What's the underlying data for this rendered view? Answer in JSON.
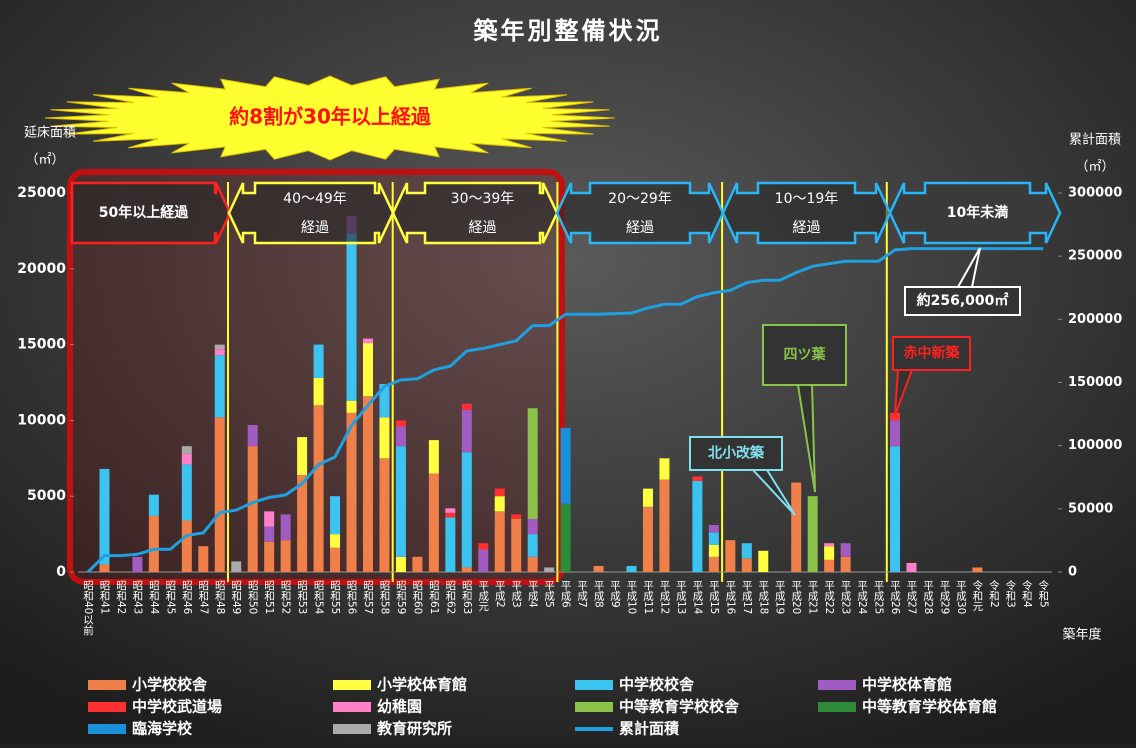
{
  "chart_data": {
    "type": "bar",
    "title": "築年別整備状況",
    "badge": "約8割が30年以上経過",
    "y_label": "延床面積",
    "y_unit": "（㎡）",
    "y2_label": "累計面積",
    "y2_unit": "（㎡）",
    "x_label": "築年度",
    "periods": [
      {
        "label": "50年以上経過",
        "color": "#ff2020"
      },
      {
        "label": "40～49年",
        "sub": "経過",
        "color": "#ffff40"
      },
      {
        "label": "30～39年",
        "sub": "経過",
        "color": "#ffff40"
      },
      {
        "label": "20～29年",
        "sub": "経過",
        "color": "#29b6f6"
      },
      {
        "label": "10～19年",
        "sub": "経過",
        "color": "#29b6f6"
      },
      {
        "label": "10年未満",
        "color": "#29b6f6"
      }
    ],
    "callouts": [
      {
        "label": "約256,000㎡",
        "color": "#ffffff"
      },
      {
        "label": "四ツ葉",
        "color": "#8bc34a"
      },
      {
        "label": "赤中新築",
        "color": "#ff2020"
      },
      {
        "label": "北小改築",
        "color": "#7fe0f0"
      }
    ],
    "categories": [
      "昭和40以前",
      "昭和41",
      "昭和42",
      "昭和43",
      "昭和44",
      "昭和45",
      "昭和46",
      "昭和47",
      "昭和48",
      "昭和49",
      "昭和50",
      "昭和51",
      "昭和52",
      "昭和53",
      "昭和54",
      "昭和55",
      "昭和56",
      "昭和57",
      "昭和58",
      "昭和59",
      "昭和60",
      "昭和61",
      "昭和62",
      "昭和63",
      "平成元",
      "平成2",
      "平成3",
      "平成4",
      "平成5",
      "平成6",
      "平成7",
      "平成8",
      "平成9",
      "平成10",
      "平成11",
      "平成12",
      "平成13",
      "平成14",
      "平成15",
      "平成16",
      "平成17",
      "平成18",
      "平成19",
      "平成20",
      "平成21",
      "平成22",
      "平成23",
      "平成24",
      "平成25",
      "平成26",
      "平成27",
      "平成28",
      "平成29",
      "平成30",
      "令和元",
      "令和2",
      "令和3",
      "令和4",
      "令和5"
    ],
    "ylim": [
      0,
      25000
    ],
    "yticks": [
      0,
      5000,
      10000,
      15000,
      20000,
      25000
    ],
    "y2lim": [
      0,
      300000
    ],
    "y2ticks": [
      0,
      50000,
      100000,
      150000,
      200000,
      250000,
      300000
    ],
    "series": [
      {
        "name": "小学校校舎",
        "color": "#f0804a",
        "values": [
          0,
          500,
          0,
          0,
          3700,
          0,
          3400,
          1700,
          10200,
          0,
          8300,
          2000,
          2100,
          6400,
          11000,
          1600,
          10500,
          11600,
          7500,
          0,
          1000,
          6500,
          0,
          300,
          0,
          4000,
          3500,
          1000,
          0,
          0,
          0,
          400,
          0,
          0,
          4300,
          6100,
          0,
          0,
          1000,
          2100,
          900,
          0,
          0,
          5900,
          0,
          800,
          1000,
          0,
          0,
          0,
          0,
          0,
          0,
          0,
          300,
          0,
          0,
          0,
          0
        ]
      },
      {
        "name": "小学校体育館",
        "color": "#ffff40",
        "values": [
          0,
          0,
          0,
          0,
          0,
          0,
          0,
          0,
          0,
          0,
          0,
          0,
          0,
          2500,
          1800,
          900,
          800,
          3500,
          2700,
          1000,
          0,
          2200,
          0,
          0,
          0,
          1000,
          0,
          0,
          0,
          0,
          0,
          0,
          0,
          0,
          1200,
          1400,
          0,
          0,
          800,
          0,
          0,
          1400,
          0,
          0,
          0,
          900,
          0,
          0,
          0,
          0,
          0,
          0,
          0,
          0,
          0,
          0,
          0,
          0,
          0
        ]
      },
      {
        "name": "中学校校舎",
        "color": "#3cc4f0",
        "values": [
          0,
          6300,
          0,
          0,
          1400,
          0,
          3700,
          0,
          4100,
          0,
          0,
          0,
          0,
          0,
          2200,
          2500,
          11000,
          0,
          2200,
          7300,
          0,
          0,
          3600,
          7600,
          0,
          0,
          0,
          1500,
          0,
          0,
          0,
          0,
          0,
          400,
          0,
          0,
          0,
          6000,
          800,
          0,
          1000,
          0,
          0,
          0,
          0,
          0,
          0,
          0,
          0,
          8300,
          0,
          0,
          0,
          0,
          0,
          0,
          0,
          0,
          0
        ]
      },
      {
        "name": "中学校体育館",
        "color": "#a05cc0",
        "values": [
          0,
          0,
          0,
          1000,
          0,
          0,
          0,
          0,
          0,
          0,
          1400,
          1000,
          1700,
          0,
          0,
          0,
          1200,
          0,
          0,
          1300,
          0,
          0,
          0,
          2800,
          1500,
          0,
          0,
          1000,
          0,
          0,
          0,
          0,
          0,
          0,
          0,
          0,
          0,
          0,
          500,
          0,
          0,
          0,
          0,
          0,
          0,
          0,
          900,
          0,
          0,
          1700,
          0,
          0,
          0,
          0,
          0,
          0,
          0,
          0,
          0
        ]
      },
      {
        "name": "中学校武道場",
        "color": "#ff3030",
        "values": [
          0,
          0,
          0,
          0,
          0,
          0,
          0,
          0,
          0,
          0,
          0,
          0,
          0,
          0,
          0,
          0,
          0,
          0,
          0,
          400,
          0,
          0,
          300,
          400,
          400,
          500,
          300,
          0,
          0,
          0,
          0,
          0,
          0,
          0,
          0,
          0,
          0,
          300,
          0,
          0,
          0,
          0,
          0,
          0,
          0,
          0,
          0,
          0,
          0,
          500,
          0,
          0,
          0,
          0,
          0,
          0,
          0,
          0,
          0
        ]
      },
      {
        "name": "幼稚園",
        "color": "#ff80c8",
        "values": [
          0,
          0,
          0,
          0,
          0,
          0,
          700,
          0,
          400,
          0,
          0,
          1000,
          0,
          0,
          0,
          0,
          0,
          300,
          0,
          0,
          0,
          0,
          300,
          0,
          0,
          0,
          0,
          0,
          0,
          0,
          0,
          0,
          0,
          0,
          0,
          0,
          0,
          0,
          0,
          0,
          0,
          0,
          0,
          0,
          0,
          200,
          0,
          0,
          0,
          0,
          600,
          0,
          0,
          0,
          0,
          0,
          0,
          0,
          0
        ]
      },
      {
        "name": "中等教育学校校舎",
        "color": "#8bc34a",
        "values": [
          0,
          0,
          0,
          0,
          0,
          0,
          0,
          0,
          0,
          0,
          0,
          0,
          0,
          0,
          0,
          0,
          0,
          0,
          0,
          0,
          0,
          0,
          0,
          0,
          0,
          0,
          0,
          7300,
          0,
          0,
          0,
          0,
          0,
          0,
          0,
          0,
          0,
          0,
          0,
          0,
          0,
          0,
          0,
          0,
          5000,
          0,
          0,
          0,
          0,
          0,
          0,
          0,
          0,
          0,
          0,
          0,
          0,
          0,
          0
        ]
      },
      {
        "name": "中等教育学校体育館",
        "color": "#2e8b3a",
        "values": [
          0,
          0,
          0,
          0,
          0,
          0,
          0,
          0,
          0,
          0,
          0,
          0,
          0,
          0,
          0,
          0,
          0,
          0,
          0,
          0,
          0,
          0,
          0,
          0,
          0,
          0,
          0,
          0,
          0,
          4500,
          0,
          0,
          0,
          0,
          0,
          0,
          0,
          0,
          0,
          0,
          0,
          0,
          0,
          0,
          0,
          0,
          0,
          0,
          0,
          0,
          0,
          0,
          0,
          0,
          0,
          0,
          0,
          0,
          0
        ]
      },
      {
        "name": "臨海学校",
        "color": "#1a90d8",
        "values": [
          0,
          0,
          0,
          0,
          0,
          0,
          0,
          0,
          0,
          0,
          0,
          0,
          0,
          0,
          0,
          0,
          0,
          0,
          0,
          0,
          0,
          0,
          0,
          0,
          0,
          0,
          0,
          0,
          0,
          5000,
          0,
          0,
          0,
          0,
          0,
          0,
          0,
          0,
          0,
          0,
          0,
          0,
          0,
          0,
          0,
          0,
          0,
          0,
          0,
          0,
          0,
          0,
          0,
          0,
          0,
          0,
          0,
          0,
          0
        ]
      },
      {
        "name": "教育研究所",
        "color": "#aaaaaa",
        "values": [
          0,
          0,
          0,
          0,
          0,
          0,
          500,
          0,
          300,
          700,
          0,
          0,
          0,
          0,
          0,
          0,
          0,
          0,
          0,
          0,
          0,
          0,
          0,
          0,
          0,
          0,
          0,
          0,
          300,
          0,
          0,
          0,
          0,
          0,
          0,
          0,
          0,
          0,
          0,
          0,
          0,
          0,
          0,
          0,
          0,
          0,
          0,
          0,
          0,
          0,
          0,
          0,
          0,
          0,
          0,
          0,
          0,
          0,
          0
        ]
      },
      {
        "name": "累計面積",
        "color": "#1fa0e0",
        "axis": "y2",
        "type": "line",
        "values": [
          0,
          13000,
          13000,
          14000,
          18000,
          18000,
          29000,
          31000,
          47000,
          49000,
          55000,
          59000,
          61000,
          70000,
          85000,
          91000,
          116000,
          132000,
          147000,
          152000,
          153000,
          160000,
          163000,
          175000,
          177000,
          180000,
          183000,
          195000,
          195000,
          204000,
          204000,
          204000,
          204500,
          205000,
          209000,
          212000,
          212000,
          218000,
          221000,
          223000,
          229000,
          231000,
          231000,
          237000,
          242000,
          244000,
          246000,
          246000,
          246000,
          255000,
          256000,
          256000,
          256000,
          256000,
          256000,
          256000,
          256000,
          256000,
          256000
        ]
      }
    ]
  }
}
